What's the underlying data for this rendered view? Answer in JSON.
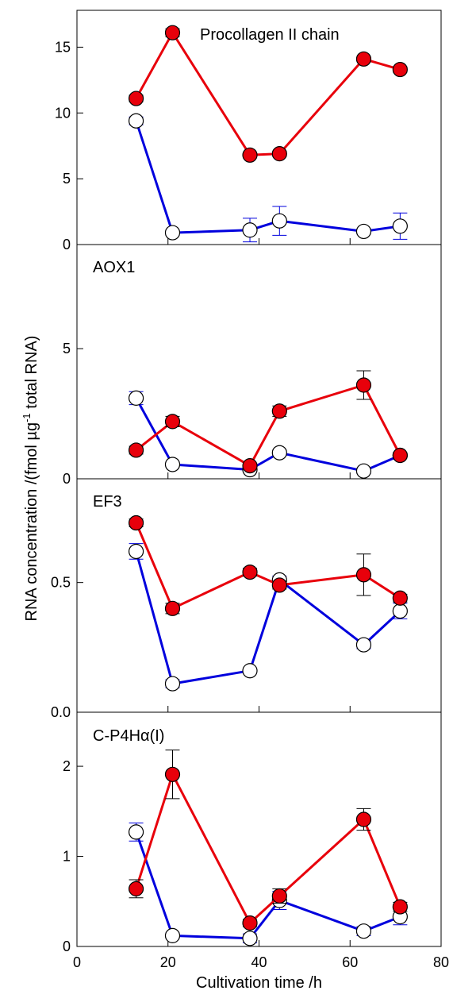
{
  "chart_data": {
    "type": "line",
    "xlabel": "Cultivation time /h",
    "ylabel_parts": [
      "RNA concentration /(fmol µg",
      "-1",
      " total RNA)"
    ],
    "xlim": [
      0,
      80
    ],
    "x_ticks": [
      0,
      20,
      40,
      60,
      80
    ],
    "x": [
      13,
      21,
      38,
      44.5,
      63,
      71
    ],
    "colors": {
      "filled": "#e8000b",
      "open": "#0000dd"
    },
    "panels": [
      {
        "label": "Procollagen II chain",
        "ylim": [
          0,
          17.8
        ],
        "y_ticks": [
          0,
          5,
          10,
          15
        ],
        "y_tick_labels": [
          "0",
          "5",
          "10",
          "15"
        ],
        "series": [
          {
            "marker": "filled",
            "values": [
              11.1,
              16.1,
              6.8,
              6.9,
              14.1,
              13.3
            ],
            "errors": [
              0.25,
              0.3,
              0.2,
              0.2,
              0.2,
              0.2
            ]
          },
          {
            "marker": "open",
            "values": [
              9.4,
              0.9,
              1.1,
              1.8,
              1.0,
              1.4
            ],
            "errors": [
              0.3,
              0.2,
              0.9,
              1.1,
              0.2,
              1.0
            ]
          }
        ]
      },
      {
        "label": "AOX1",
        "ylim": [
          0,
          9
        ],
        "y_ticks": [
          0,
          5
        ],
        "y_tick_labels": [
          "0",
          "5"
        ],
        "series": [
          {
            "marker": "filled",
            "values": [
              1.1,
              2.2,
              0.5,
              2.6,
              3.6,
              0.9
            ],
            "errors": [
              0.15,
              0.2,
              0.1,
              0.2,
              0.55,
              0.1
            ]
          },
          {
            "marker": "open",
            "values": [
              3.1,
              0.55,
              0.35,
              1.0,
              0.3,
              0.9
            ],
            "errors": [
              0.25,
              0.1,
              0.1,
              0.1,
              0.1,
              0.1
            ]
          }
        ]
      },
      {
        "label": "EF3",
        "ylim": [
          0,
          0.9
        ],
        "y_ticks": [
          0,
          0.5
        ],
        "y_tick_labels": [
          "0.0",
          "0.5"
        ],
        "series": [
          {
            "marker": "filled",
            "values": [
              0.73,
              0.4,
              0.54,
              0.49,
              0.53,
              0.44
            ],
            "errors": [
              0.015,
              0.02,
              0.015,
              0.015,
              0.08,
              0.015
            ]
          },
          {
            "marker": "open",
            "values": [
              0.62,
              0.11,
              0.16,
              0.51,
              0.26,
              0.39
            ],
            "errors": [
              0.03,
              0.015,
              0.01,
              0.015,
              0.015,
              0.03
            ]
          }
        ]
      },
      {
        "label": "C-P4Hα(I)",
        "ylim": [
          0,
          2.6
        ],
        "y_ticks": [
          0,
          1,
          2
        ],
        "y_tick_labels": [
          "0",
          "1",
          "2"
        ],
        "series": [
          {
            "marker": "filled",
            "values": [
              0.64,
              1.91,
              0.26,
              0.56,
              1.41,
              0.44
            ],
            "errors": [
              0.1,
              0.27,
              0.04,
              0.08,
              0.12,
              0.05
            ]
          },
          {
            "marker": "open",
            "values": [
              1.27,
              0.12,
              0.09,
              0.51,
              0.17,
              0.33
            ],
            "errors": [
              0.1,
              0.03,
              0.05,
              0.1,
              0.05,
              0.09
            ]
          }
        ]
      }
    ]
  }
}
